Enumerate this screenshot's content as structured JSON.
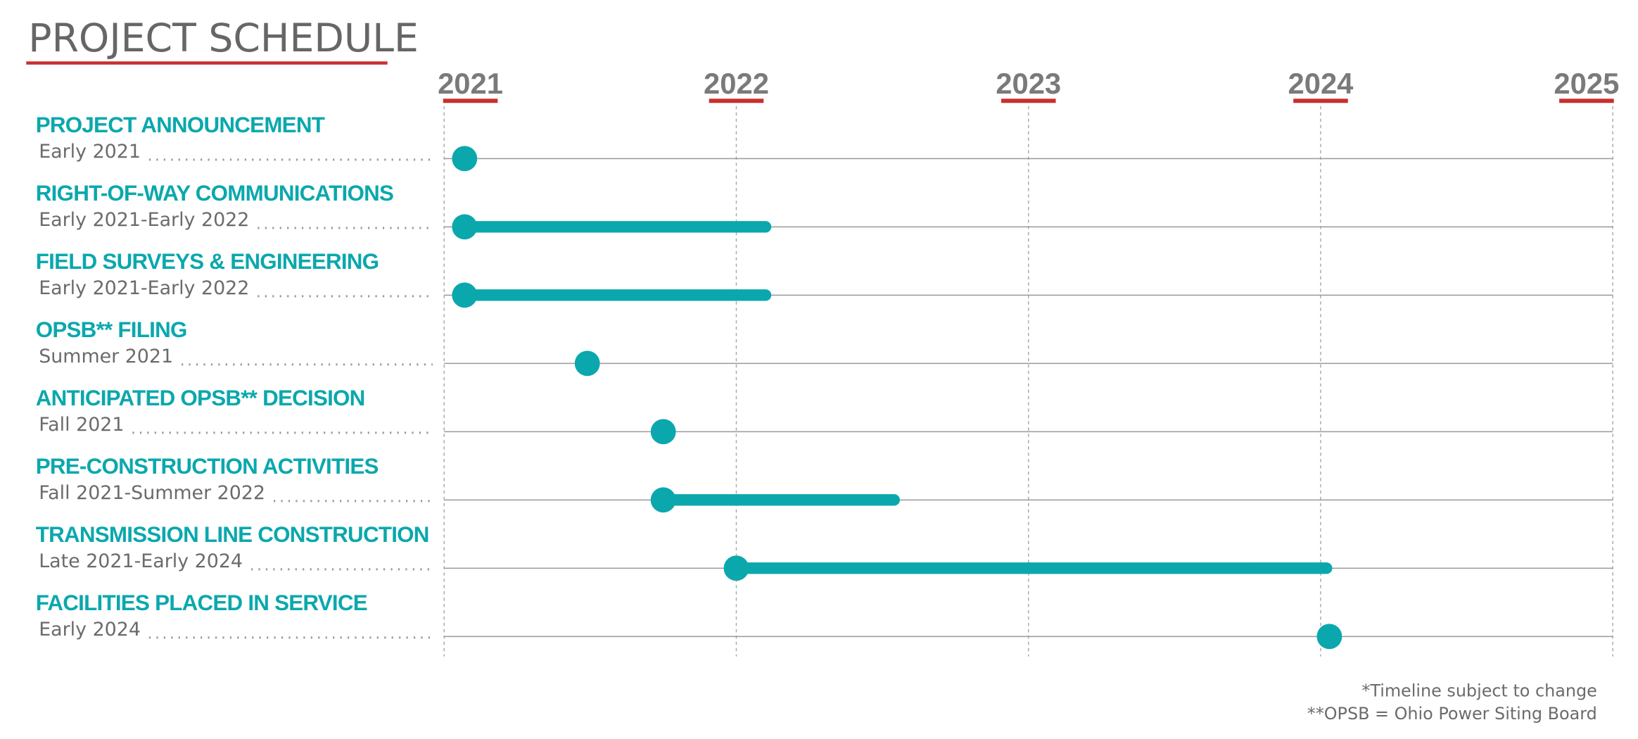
{
  "chart_data": {
    "type": "timeline",
    "title": "PROJECT SCHEDULE",
    "xlim": [
      2021,
      2025
    ],
    "xticks": [
      2021,
      2022,
      2023,
      2024,
      2025
    ],
    "color": "#0aa8ad",
    "tasks": [
      {
        "name": "PROJECT ANNOUNCEMENT",
        "period": "Early 2021",
        "start": 2021.07,
        "end": null
      },
      {
        "name": "RIGHT-OF-WAY COMMUNICATIONS",
        "period": "Early 2021-Early 2022",
        "start": 2021.07,
        "end": 2022.1
      },
      {
        "name": "FIELD SURVEYS & ENGINEERING",
        "period": "Early 2021-Early 2022",
        "start": 2021.07,
        "end": 2022.1
      },
      {
        "name": "OPSB** FILING",
        "period": "Summer 2021",
        "start": 2021.49,
        "end": null
      },
      {
        "name": "ANTICIPATED OPSB** DECISION",
        "period": "Fall 2021",
        "start": 2021.75,
        "end": null
      },
      {
        "name": "PRE-CONSTRUCTION ACTIVITIES",
        "period": "Fall 2021-Summer 2022",
        "start": 2021.75,
        "end": 2022.54
      },
      {
        "name": "TRANSMISSION LINE CONSTRUCTION",
        "period": "Late 2021-Early 2024",
        "start": 2022.0,
        "end": 2024.02
      },
      {
        "name": "FACILITIES PLACED IN SERVICE",
        "period": "Early 2024",
        "start": 2024.03,
        "end": null
      }
    ],
    "notes": [
      "*Timeline subject to change",
      "**OPSB = Ohio Power Siting Board"
    ]
  }
}
